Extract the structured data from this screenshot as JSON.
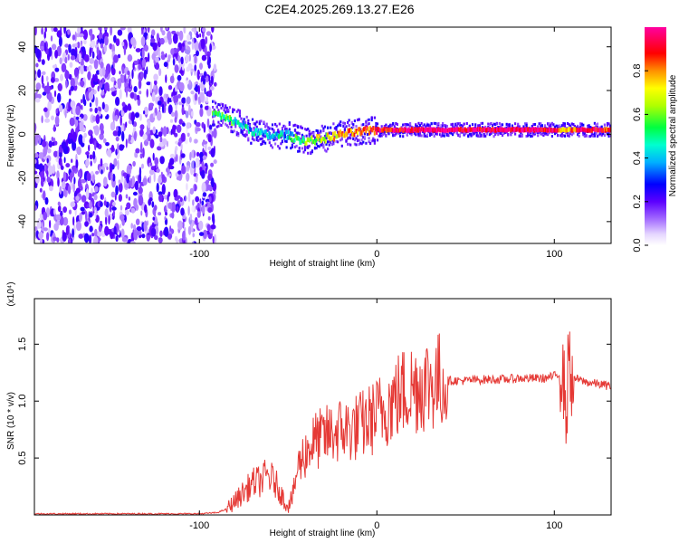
{
  "title": "C2E4.2025.269.13.27.E26",
  "colors": {
    "snr_line": "#e53935",
    "frame": "#000000"
  },
  "chart_data": [
    {
      "type": "heatmap",
      "title": "C2E4.2025.269.13.27.E26",
      "xlabel": "Height of straight line (km)",
      "ylabel": "Frequency (Hz)",
      "xlim": [
        -193,
        132
      ],
      "ylim": [
        -50,
        49
      ],
      "xticks": [
        -100,
        0,
        100
      ],
      "xtick_labels": [
        "-100",
        "0",
        "100"
      ],
      "yticks": [
        -40,
        -20,
        0,
        20,
        40
      ],
      "ytick_labels": [
        "-40",
        "-20",
        "0",
        "20",
        "40"
      ],
      "colorbar": {
        "label": "Normalized spectral amplitude",
        "range": [
          0.0,
          1.0
        ],
        "ticks": [
          0.0,
          0.2,
          0.4,
          0.6,
          0.8
        ],
        "tick_labels": [
          "0.0",
          "0.2",
          "0.4",
          "0.6",
          "0.8"
        ]
      },
      "ridge": {
        "x": [
          -93,
          -85,
          -78,
          -72,
          -65,
          -58,
          -52,
          -46,
          -40,
          -30,
          -20,
          -10,
          0,
          20,
          50,
          80,
          100,
          105,
          115,
          132
        ],
        "frequency_hz": [
          10,
          7,
          5,
          2,
          0,
          -1,
          0,
          -2,
          -3,
          -2,
          0,
          1,
          2,
          2,
          2,
          2,
          2,
          2,
          2,
          2
        ],
        "amplitude": [
          0.5,
          0.55,
          0.45,
          0.4,
          0.4,
          0.45,
          0.4,
          0.5,
          0.6,
          0.7,
          0.75,
          0.85,
          0.9,
          0.95,
          0.95,
          0.95,
          0.95,
          0.7,
          0.95,
          0.9
        ]
      },
      "noise_region_x": [
        -193,
        -91
      ]
    },
    {
      "type": "line",
      "xlabel": "Height of straight line (km)",
      "ylabel": "SNR (10 * v/v)",
      "y_multiplier": "(x10⁴)",
      "xlim": [
        -193,
        132
      ],
      "ylim": [
        0,
        1.9
      ],
      "xticks": [
        -100,
        0,
        100
      ],
      "xtick_labels": [
        "-100",
        "0",
        "100"
      ],
      "yticks": [
        0.5,
        1.0,
        1.5
      ],
      "ytick_labels": [
        "0.5",
        "1.0",
        "1.5"
      ],
      "series": [
        {
          "name": "SNR",
          "x": [
            -193,
            -150,
            -100,
            -90,
            -85,
            -80,
            -75,
            -70,
            -65,
            -62,
            -58,
            -55,
            -52,
            -50,
            -47,
            -45,
            -42,
            -40,
            -38,
            -35,
            -30,
            -25,
            -20,
            -15,
            -10,
            -5,
            0,
            5,
            10,
            15,
            20,
            25,
            30,
            40,
            50,
            60,
            70,
            80,
            90,
            95,
            100,
            104,
            106,
            107,
            108,
            109,
            110,
            112,
            115,
            120,
            125,
            132
          ],
          "values": [
            0.01,
            0.01,
            0.01,
            0.02,
            0.05,
            0.12,
            0.2,
            0.28,
            0.3,
            0.35,
            0.3,
            0.22,
            0.12,
            0.08,
            0.18,
            0.4,
            0.5,
            0.55,
            0.6,
            0.65,
            0.68,
            0.72,
            0.75,
            0.75,
            0.78,
            0.82,
            0.88,
            0.95,
            1.02,
            1.08,
            1.12,
            1.15,
            1.17,
            1.18,
            1.18,
            1.19,
            1.19,
            1.2,
            1.2,
            1.2,
            1.22,
            1.25,
            1.1,
            0.8,
            1.5,
            1.3,
            1.15,
            1.2,
            1.18,
            1.16,
            1.15,
            1.13
          ]
        }
      ]
    }
  ]
}
